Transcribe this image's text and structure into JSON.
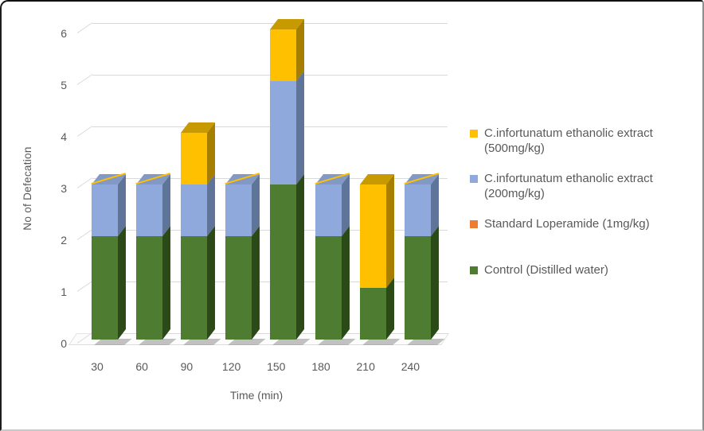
{
  "chart_data": {
    "type": "bar",
    "subtype": "stacked-column-3d",
    "title": "",
    "xlabel": "Time (min)",
    "ylabel": "No of Defecation",
    "ylim": [
      0,
      6
    ],
    "ytick_step": 1,
    "grid": true,
    "legend_position": "right",
    "categories": [
      "30",
      "60",
      "90",
      "120",
      "150",
      "180",
      "210",
      "240"
    ],
    "series": [
      {
        "name": "Control (Distilled water)",
        "color": "#4E7C31",
        "side_color": "#2B4A18",
        "top_color": "#608E3C",
        "values": [
          2,
          2,
          2,
          2,
          3,
          2,
          1,
          2
        ]
      },
      {
        "name": "Standard Loperamide (1mg/kg)",
        "color": "#ED7D31",
        "side_color": "#B55A1B",
        "top_color": "#D96F25",
        "values": [
          0,
          0,
          0,
          0,
          0,
          0,
          0,
          0
        ]
      },
      {
        "name": "C.infortunatum ethanolic extract (200mg/kg)",
        "color": "#8FA9DC",
        "side_color": "#5F7499",
        "top_color": "#8299C6",
        "values": [
          1,
          1,
          1,
          1,
          2,
          1,
          0,
          1
        ]
      },
      {
        "name": "C.infortunatum ethanolic extract (500mg/kg)",
        "color": "#FFC000",
        "side_color": "#A67E00",
        "top_color": "#C79A02",
        "values": [
          0,
          0,
          1,
          0,
          1,
          0,
          2,
          0
        ]
      }
    ],
    "totals": [
      3,
      3,
      4,
      3,
      6,
      3,
      3,
      3
    ]
  },
  "y_axis": {
    "title": "No of Defecation",
    "ticks": [
      "0",
      "1",
      "2",
      "3",
      "4",
      "5",
      "6"
    ]
  },
  "x_axis": {
    "title": "Time (min)",
    "labels": [
      "30",
      "60",
      "90",
      "120",
      "150",
      "180",
      "210",
      "240"
    ]
  },
  "legend": {
    "items": [
      {
        "label": "C.infortunatum ethanolic extract (500mg/kg)",
        "color": "#FFC000"
      },
      {
        "label": "C.infortunatum ethanolic extract (200mg/kg)",
        "color": "#8FA9DC"
      },
      {
        "label": "Standard Loperamide (1mg/kg)",
        "color": "#ED7D31"
      },
      {
        "label": "Control (Distilled water)",
        "color": "#4E7C31"
      }
    ]
  },
  "colors": {
    "gridline": "#D9D9D9",
    "axis_text": "#595959",
    "legend_text": "#595959",
    "background": "#FFFFFF"
  }
}
